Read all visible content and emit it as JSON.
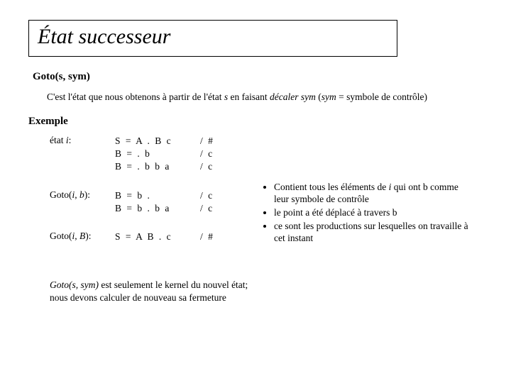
{
  "title": "État successeur",
  "goto_heading": "Goto(s, sym)",
  "description_parts": {
    "p1": "C'est l'état que nous obtenons à partir de l'état ",
    "s": "s",
    "p2": " en faisant ",
    "decaler": "décaler sym",
    "p3": " (",
    "sym": "sym",
    "p4": " = symbole de contrôle)"
  },
  "exemple_heading": "Exemple",
  "rows": [
    {
      "label_pre": "état ",
      "label_it": "i",
      "label_post": ":",
      "prods": [
        "S = A . B c",
        "B = . b",
        "B = . b b a"
      ],
      "look": [
        "/ #",
        "/ c",
        "/ c"
      ]
    },
    {
      "label_pre": "Goto(",
      "label_it": "i",
      "label_mid": ", ",
      "label_it2": "b",
      "label_post": "):",
      "prods": [
        "B = b .",
        "B = b . b a"
      ],
      "look": [
        "/ c",
        "/ c"
      ]
    },
    {
      "label_pre": "Goto(",
      "label_it": "i",
      "label_mid": ", ",
      "label_it2": "B",
      "label_post": "):",
      "prods": [
        "S = A B . c"
      ],
      "look": [
        "/ #"
      ]
    }
  ],
  "bullets": {
    "b1_pre": "Contient tous les éléments de ",
    "b1_it": "i",
    "b1_post": " qui ont b comme leur symbole de contrôle",
    "b2": "le point a été déplacé à travers b",
    "b3": "ce sont les productions sur lesquelles on travaille à cet instant"
  },
  "closing": {
    "it": "Goto(s, sym)",
    "rest1": " est seulement le kernel du nouvel état;",
    "rest2": "nous devons calculer de nouveau sa fermeture"
  }
}
